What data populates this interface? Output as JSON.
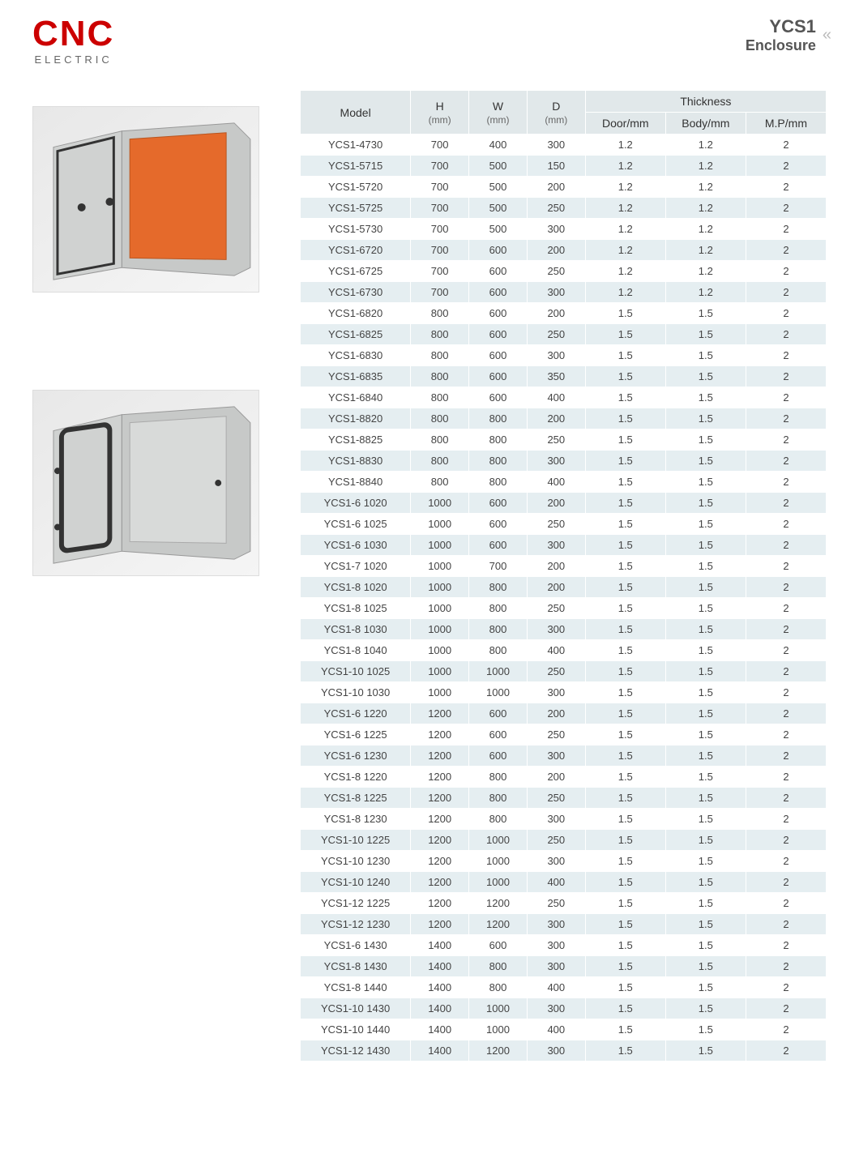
{
  "logo": {
    "main": "CNC",
    "sub": "ELECTRIC"
  },
  "title": {
    "line1": "YCS1",
    "line2": "Enclosure"
  },
  "colors": {
    "logo": "#cc0000",
    "header_bg": "#e1e8ea",
    "row_alt_bg": "#e5eef1",
    "row_bg": "#ffffff",
    "text": "#444444",
    "border": "#ffffff"
  },
  "table": {
    "columns": {
      "model": "Model",
      "h": "H",
      "h_unit": "(mm)",
      "w": "W",
      "w_unit": "(mm)",
      "d": "D",
      "d_unit": "(mm)",
      "thickness": "Thickness",
      "door": "Door/mm",
      "body": "Body/mm",
      "mp": "M.P/mm"
    },
    "rows": [
      {
        "model": "YCS1-4730",
        "h": "700",
        "w": "400",
        "d": "300",
        "door": "1.2",
        "body": "1.2",
        "mp": "2"
      },
      {
        "model": "YCS1-5715",
        "h": "700",
        "w": "500",
        "d": "150",
        "door": "1.2",
        "body": "1.2",
        "mp": "2"
      },
      {
        "model": "YCS1-5720",
        "h": "700",
        "w": "500",
        "d": "200",
        "door": "1.2",
        "body": "1.2",
        "mp": "2"
      },
      {
        "model": "YCS1-5725",
        "h": "700",
        "w": "500",
        "d": "250",
        "door": "1.2",
        "body": "1.2",
        "mp": "2"
      },
      {
        "model": "YCS1-5730",
        "h": "700",
        "w": "500",
        "d": "300",
        "door": "1.2",
        "body": "1.2",
        "mp": "2"
      },
      {
        "model": "YCS1-6720",
        "h": "700",
        "w": "600",
        "d": "200",
        "door": "1.2",
        "body": "1.2",
        "mp": "2"
      },
      {
        "model": "YCS1-6725",
        "h": "700",
        "w": "600",
        "d": "250",
        "door": "1.2",
        "body": "1.2",
        "mp": "2"
      },
      {
        "model": "YCS1-6730",
        "h": "700",
        "w": "600",
        "d": "300",
        "door": "1.2",
        "body": "1.2",
        "mp": "2"
      },
      {
        "model": "YCS1-6820",
        "h": "800",
        "w": "600",
        "d": "200",
        "door": "1.5",
        "body": "1.5",
        "mp": "2"
      },
      {
        "model": "YCS1-6825",
        "h": "800",
        "w": "600",
        "d": "250",
        "door": "1.5",
        "body": "1.5",
        "mp": "2"
      },
      {
        "model": "YCS1-6830",
        "h": "800",
        "w": "600",
        "d": "300",
        "door": "1.5",
        "body": "1.5",
        "mp": "2"
      },
      {
        "model": "YCS1-6835",
        "h": "800",
        "w": "600",
        "d": "350",
        "door": "1.5",
        "body": "1.5",
        "mp": "2"
      },
      {
        "model": "YCS1-6840",
        "h": "800",
        "w": "600",
        "d": "400",
        "door": "1.5",
        "body": "1.5",
        "mp": "2"
      },
      {
        "model": "YCS1-8820",
        "h": "800",
        "w": "800",
        "d": "200",
        "door": "1.5",
        "body": "1.5",
        "mp": "2"
      },
      {
        "model": "YCS1-8825",
        "h": "800",
        "w": "800",
        "d": "250",
        "door": "1.5",
        "body": "1.5",
        "mp": "2"
      },
      {
        "model": "YCS1-8830",
        "h": "800",
        "w": "800",
        "d": "300",
        "door": "1.5",
        "body": "1.5",
        "mp": "2"
      },
      {
        "model": "YCS1-8840",
        "h": "800",
        "w": "800",
        "d": "400",
        "door": "1.5",
        "body": "1.5",
        "mp": "2"
      },
      {
        "model": "YCS1-6 1020",
        "h": "1000",
        "w": "600",
        "d": "200",
        "door": "1.5",
        "body": "1.5",
        "mp": "2"
      },
      {
        "model": "YCS1-6 1025",
        "h": "1000",
        "w": "600",
        "d": "250",
        "door": "1.5",
        "body": "1.5",
        "mp": "2"
      },
      {
        "model": "YCS1-6 1030",
        "h": "1000",
        "w": "600",
        "d": "300",
        "door": "1.5",
        "body": "1.5",
        "mp": "2"
      },
      {
        "model": "YCS1-7 1020",
        "h": "1000",
        "w": "700",
        "d": "200",
        "door": "1.5",
        "body": "1.5",
        "mp": "2"
      },
      {
        "model": "YCS1-8 1020",
        "h": "1000",
        "w": "800",
        "d": "200",
        "door": "1.5",
        "body": "1.5",
        "mp": "2"
      },
      {
        "model": "YCS1-8 1025",
        "h": "1000",
        "w": "800",
        "d": "250",
        "door": "1.5",
        "body": "1.5",
        "mp": "2"
      },
      {
        "model": "YCS1-8 1030",
        "h": "1000",
        "w": "800",
        "d": "300",
        "door": "1.5",
        "body": "1.5",
        "mp": "2"
      },
      {
        "model": "YCS1-8 1040",
        "h": "1000",
        "w": "800",
        "d": "400",
        "door": "1.5",
        "body": "1.5",
        "mp": "2"
      },
      {
        "model": "YCS1-10 1025",
        "h": "1000",
        "w": "1000",
        "d": "250",
        "door": "1.5",
        "body": "1.5",
        "mp": "2"
      },
      {
        "model": "YCS1-10 1030",
        "h": "1000",
        "w": "1000",
        "d": "300",
        "door": "1.5",
        "body": "1.5",
        "mp": "2"
      },
      {
        "model": "YCS1-6 1220",
        "h": "1200",
        "w": "600",
        "d": "200",
        "door": "1.5",
        "body": "1.5",
        "mp": "2"
      },
      {
        "model": "YCS1-6 1225",
        "h": "1200",
        "w": "600",
        "d": "250",
        "door": "1.5",
        "body": "1.5",
        "mp": "2"
      },
      {
        "model": "YCS1-6 1230",
        "h": "1200",
        "w": "600",
        "d": "300",
        "door": "1.5",
        "body": "1.5",
        "mp": "2"
      },
      {
        "model": "YCS1-8 1220",
        "h": "1200",
        "w": "800",
        "d": "200",
        "door": "1.5",
        "body": "1.5",
        "mp": "2"
      },
      {
        "model": "YCS1-8 1225",
        "h": "1200",
        "w": "800",
        "d": "250",
        "door": "1.5",
        "body": "1.5",
        "mp": "2"
      },
      {
        "model": "YCS1-8 1230",
        "h": "1200",
        "w": "800",
        "d": "300",
        "door": "1.5",
        "body": "1.5",
        "mp": "2"
      },
      {
        "model": "YCS1-10 1225",
        "h": "1200",
        "w": "1000",
        "d": "250",
        "door": "1.5",
        "body": "1.5",
        "mp": "2"
      },
      {
        "model": "YCS1-10 1230",
        "h": "1200",
        "w": "1000",
        "d": "300",
        "door": "1.5",
        "body": "1.5",
        "mp": "2"
      },
      {
        "model": "YCS1-10 1240",
        "h": "1200",
        "w": "1000",
        "d": "400",
        "door": "1.5",
        "body": "1.5",
        "mp": "2"
      },
      {
        "model": "YCS1-12 1225",
        "h": "1200",
        "w": "1200",
        "d": "250",
        "door": "1.5",
        "body": "1.5",
        "mp": "2"
      },
      {
        "model": "YCS1-12 1230",
        "h": "1200",
        "w": "1200",
        "d": "300",
        "door": "1.5",
        "body": "1.5",
        "mp": "2"
      },
      {
        "model": "YCS1-6 1430",
        "h": "1400",
        "w": "600",
        "d": "300",
        "door": "1.5",
        "body": "1.5",
        "mp": "2"
      },
      {
        "model": "YCS1-8 1430",
        "h": "1400",
        "w": "800",
        "d": "300",
        "door": "1.5",
        "body": "1.5",
        "mp": "2"
      },
      {
        "model": "YCS1-8 1440",
        "h": "1400",
        "w": "800",
        "d": "400",
        "door": "1.5",
        "body": "1.5",
        "mp": "2"
      },
      {
        "model": "YCS1-10 1430",
        "h": "1400",
        "w": "1000",
        "d": "300",
        "door": "1.5",
        "body": "1.5",
        "mp": "2"
      },
      {
        "model": "YCS1-10 1440",
        "h": "1400",
        "w": "1000",
        "d": "400",
        "door": "1.5",
        "body": "1.5",
        "mp": "2"
      },
      {
        "model": "YCS1-12 1430",
        "h": "1400",
        "w": "1200",
        "d": "300",
        "door": "1.5",
        "body": "1.5",
        "mp": "2"
      }
    ]
  },
  "images": {
    "product1": {
      "interior_color": "#e56a2b",
      "body_color": "#c7c9c8"
    },
    "product2": {
      "interior_color": "#d8dad9",
      "body_color": "#c7c9c8"
    }
  }
}
